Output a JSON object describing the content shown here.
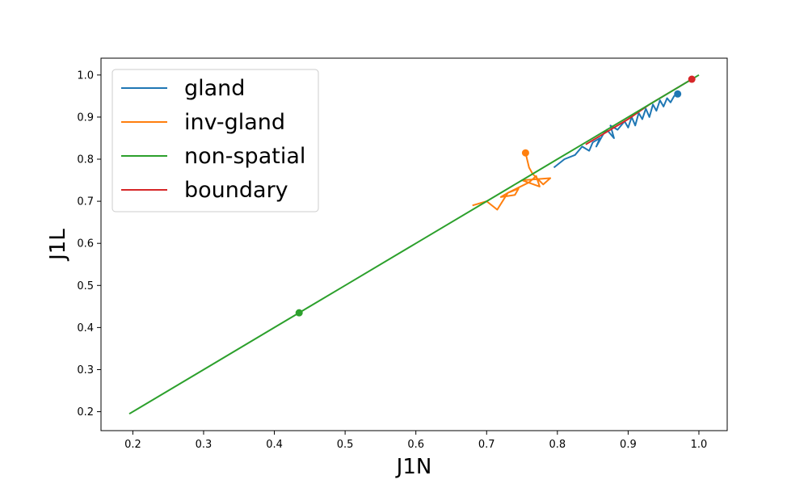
{
  "chart_data": {
    "type": "line",
    "title": "",
    "xlabel": "J1N",
    "ylabel": "J1L",
    "xlim": [
      0.155,
      1.04
    ],
    "ylim": [
      0.155,
      1.04
    ],
    "xticks": [
      0.2,
      0.3,
      0.4,
      0.5,
      0.6,
      0.7,
      0.8,
      0.9,
      1.0
    ],
    "yticks": [
      0.2,
      0.3,
      0.4,
      0.5,
      0.6,
      0.7,
      0.8,
      0.9,
      1.0
    ],
    "grid": false,
    "legend_position": "upper-left",
    "series": [
      {
        "name": "gland",
        "color": "#1f77b4",
        "x": [
          0.795,
          0.81,
          0.825,
          0.835,
          0.845,
          0.85,
          0.86,
          0.855,
          0.865,
          0.87,
          0.88,
          0.875,
          0.885,
          0.895,
          0.9,
          0.905,
          0.91,
          0.915,
          0.92,
          0.925,
          0.93,
          0.935,
          0.94,
          0.945,
          0.95,
          0.955,
          0.96,
          0.965,
          0.97
        ],
        "y": [
          0.78,
          0.8,
          0.81,
          0.83,
          0.82,
          0.84,
          0.85,
          0.83,
          0.86,
          0.87,
          0.85,
          0.88,
          0.87,
          0.89,
          0.875,
          0.9,
          0.88,
          0.91,
          0.895,
          0.92,
          0.9,
          0.93,
          0.915,
          0.94,
          0.925,
          0.945,
          0.935,
          0.95,
          0.955
        ],
        "end_marker": true
      },
      {
        "name": "inv-gland",
        "color": "#ff7f0e",
        "x": [
          0.68,
          0.7,
          0.715,
          0.73,
          0.72,
          0.74,
          0.745,
          0.73,
          0.76,
          0.77,
          0.775,
          0.75,
          0.79,
          0.78,
          0.765,
          0.76,
          0.755
        ],
        "y": [
          0.69,
          0.7,
          0.68,
          0.72,
          0.71,
          0.715,
          0.73,
          0.72,
          0.745,
          0.76,
          0.735,
          0.75,
          0.755,
          0.74,
          0.765,
          0.78,
          0.815
        ],
        "end_marker": true
      },
      {
        "name": "non-spatial",
        "color": "#2ca02c",
        "x": [
          0.195,
          0.3,
          0.4,
          0.435,
          0.5,
          0.6,
          0.7,
          0.75,
          0.8,
          0.84
        ],
        "y": [
          0.195,
          0.3,
          0.4,
          0.435,
          0.5,
          0.6,
          0.7,
          0.75,
          0.8,
          0.84
        ],
        "marker_point": [
          0.435,
          0.435
        ]
      },
      {
        "name": "boundary",
        "color": "#d62728",
        "x": [
          0.84,
          0.87,
          0.9,
          0.93,
          0.96,
          0.99
        ],
        "y": [
          0.835,
          0.865,
          0.895,
          0.93,
          0.96,
          0.99
        ],
        "end_marker": true
      }
    ],
    "extra_segments": [
      {
        "color": "#2ca02c",
        "x": [
          0.84,
          1.0
        ],
        "y": [
          0.84,
          1.0
        ]
      }
    ]
  }
}
